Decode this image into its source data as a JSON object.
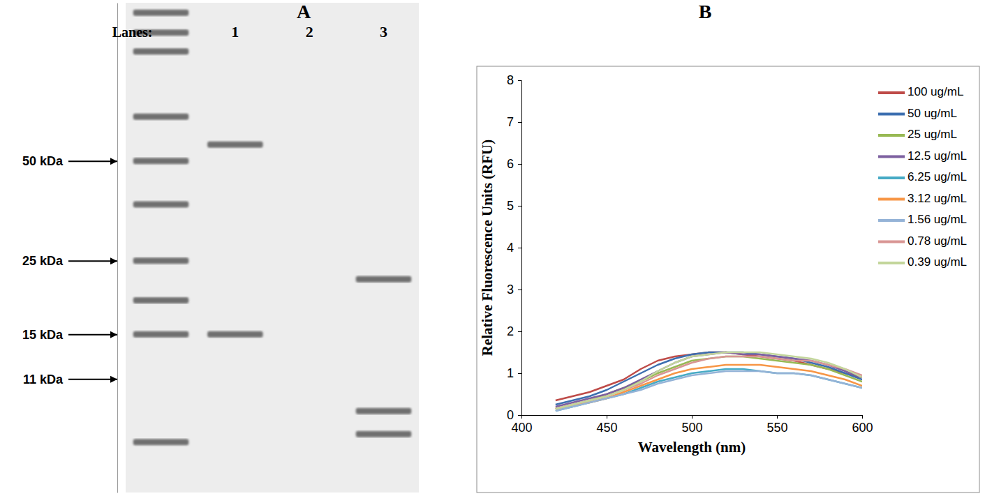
{
  "chart_data": [
    {
      "type": "gel",
      "title": "A",
      "xlabel": "Lanes:",
      "categories": [
        null,
        "1",
        "2",
        "3"
      ],
      "bands": [
        [
          140,
          122,
          107,
          68,
          50,
          37,
          25,
          19,
          15,
          7.1
        ],
        [
          56,
          15
        ],
        [],
        [
          22,
          8.8,
          7.5
        ]
      ],
      "ylim": [
        5,
        150
      ],
      "log": "y",
      "yticks": [
        {
          "value": 50,
          "label": "50 kDa"
        },
        {
          "value": 25,
          "label": "25 kDa"
        },
        {
          "value": 15,
          "label": "15 kDa"
        },
        {
          "value": 11,
          "label": "11 kDa"
        }
      ]
    },
    {
      "type": "line",
      "title": "B",
      "xlabel": "Wavelength (nm)",
      "ylabel": "Relative Fluorescence Units (RFU)",
      "x": [
        420,
        430,
        440,
        450,
        460,
        470,
        480,
        490,
        500,
        510,
        520,
        530,
        540,
        550,
        560,
        570,
        580,
        590,
        600
      ],
      "xlim": [
        400,
        600
      ],
      "xticks": [
        400,
        450,
        500,
        550,
        600
      ],
      "ylim": [
        0,
        8
      ],
      "yticks": [
        0,
        1,
        2,
        3,
        4,
        5,
        6,
        7,
        8
      ],
      "grid": false,
      "legend": "top-right",
      "series": [
        {
          "name": "100 ug/mL",
          "color": "#be4b48",
          "values": [
            0.35,
            0.45,
            0.55,
            0.7,
            0.85,
            1.1,
            1.3,
            1.4,
            1.45,
            1.5,
            1.5,
            1.45,
            1.4,
            1.35,
            1.3,
            1.2,
            1.1,
            1.0,
            0.9
          ]
        },
        {
          "name": "50 ug/mL",
          "color": "#3c6fb0",
          "values": [
            0.25,
            0.35,
            0.45,
            0.6,
            0.8,
            1.0,
            1.2,
            1.35,
            1.45,
            1.5,
            1.5,
            1.5,
            1.45,
            1.4,
            1.35,
            1.25,
            1.15,
            1.0,
            0.85
          ]
        },
        {
          "name": "25 ug/mL",
          "color": "#98b954",
          "values": [
            0.15,
            0.25,
            0.35,
            0.5,
            0.65,
            0.8,
            1.0,
            1.15,
            1.3,
            1.35,
            1.4,
            1.4,
            1.35,
            1.3,
            1.25,
            1.2,
            1.1,
            0.95,
            0.8
          ]
        },
        {
          "name": "12.5 ug/mL",
          "color": "#7d60a0",
          "values": [
            0.2,
            0.3,
            0.4,
            0.5,
            0.65,
            0.85,
            1.05,
            1.25,
            1.4,
            1.45,
            1.5,
            1.45,
            1.45,
            1.4,
            1.35,
            1.3,
            1.2,
            1.05,
            0.9
          ]
        },
        {
          "name": "6.25 ug/mL",
          "color": "#46aac5",
          "values": [
            0.1,
            0.2,
            0.3,
            0.4,
            0.5,
            0.65,
            0.8,
            0.9,
            1.0,
            1.05,
            1.1,
            1.1,
            1.05,
            1.0,
            1.0,
            0.95,
            0.85,
            0.75,
            0.65
          ]
        },
        {
          "name": "3.12 ug/mL",
          "color": "#f79646",
          "values": [
            0.15,
            0.25,
            0.3,
            0.4,
            0.55,
            0.7,
            0.85,
            1.0,
            1.1,
            1.15,
            1.2,
            1.2,
            1.2,
            1.15,
            1.1,
            1.05,
            0.95,
            0.85,
            0.7
          ]
        },
        {
          "name": "1.56 ug/mL",
          "color": "#95b3d7",
          "values": [
            0.1,
            0.2,
            0.3,
            0.4,
            0.5,
            0.6,
            0.75,
            0.85,
            0.95,
            1.0,
            1.05,
            1.05,
            1.05,
            1.0,
            1.0,
            0.95,
            0.85,
            0.75,
            0.65
          ]
        },
        {
          "name": "0.78 ug/mL",
          "color": "#d99694",
          "values": [
            0.15,
            0.25,
            0.35,
            0.45,
            0.6,
            0.75,
            0.95,
            1.1,
            1.25,
            1.35,
            1.4,
            1.4,
            1.4,
            1.35,
            1.3,
            1.3,
            1.2,
            1.1,
            0.95
          ]
        },
        {
          "name": "0.39 ug/mL",
          "color": "#c3d69b",
          "values": [
            0.15,
            0.25,
            0.35,
            0.45,
            0.6,
            0.8,
            1.05,
            1.25,
            1.4,
            1.45,
            1.5,
            1.5,
            1.5,
            1.45,
            1.4,
            1.35,
            1.25,
            1.1,
            0.9
          ]
        }
      ]
    }
  ]
}
